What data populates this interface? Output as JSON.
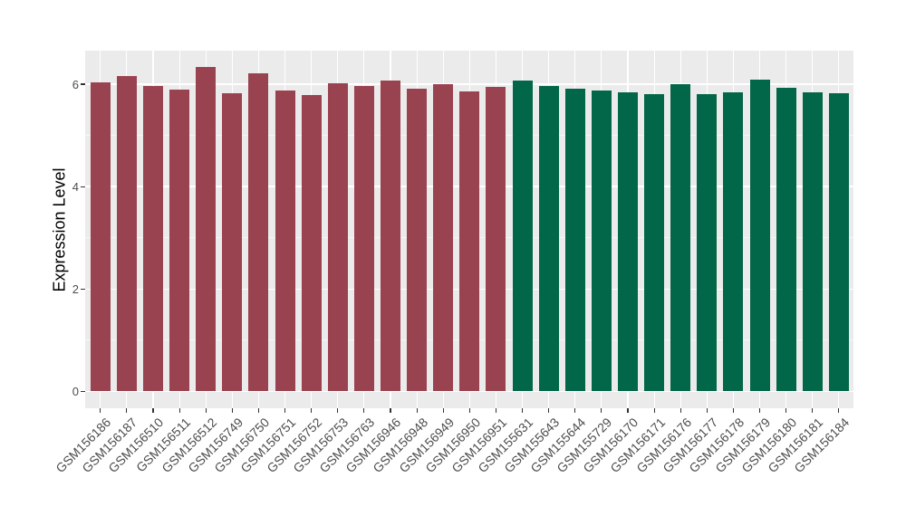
{
  "figure": {
    "background": "#FFFFFF",
    "panel_background": "#EBEBEB",
    "grid_color": "#FFFFFF",
    "tick_color": "#333333",
    "tick_label_color": "#4D4D4D"
  },
  "chart_data": {
    "type": "bar",
    "title": "",
    "xlabel": "",
    "ylabel": "Expression Level",
    "ylim": [
      0,
      6.65
    ],
    "yticks_major": [
      0,
      2,
      4,
      6
    ],
    "yticks_minor": [
      1,
      3,
      5
    ],
    "grid": true,
    "legend_position": "none",
    "x_tick_angle_deg": 45,
    "categories": [
      "GSM156186",
      "GSM156187",
      "GSM156510",
      "GSM156511",
      "GSM156512",
      "GSM156749",
      "GSM156750",
      "GSM156751",
      "GSM156752",
      "GSM156753",
      "GSM156763",
      "GSM156946",
      "GSM156948",
      "GSM156949",
      "GSM156950",
      "GSM156951",
      "GSM155631",
      "GSM155643",
      "GSM155644",
      "GSM155729",
      "GSM156170",
      "GSM156171",
      "GSM156176",
      "GSM156177",
      "GSM156178",
      "GSM156179",
      "GSM156180",
      "GSM156181",
      "GSM156184"
    ],
    "values": [
      6.04,
      6.16,
      5.97,
      5.9,
      6.33,
      5.83,
      6.21,
      5.88,
      5.79,
      6.01,
      5.97,
      6.07,
      5.91,
      6.0,
      5.86,
      5.94,
      6.07,
      5.96,
      5.92,
      5.88,
      5.84,
      5.81,
      6.0,
      5.81,
      5.85,
      6.09,
      5.93,
      5.84,
      5.82
    ],
    "groups": [
      {
        "name": "group-1-red",
        "color": "#9A4350",
        "start_index": 0,
        "end_index": 15
      },
      {
        "name": "group-2-green",
        "color": "#026649",
        "start_index": 16,
        "end_index": 28
      }
    ]
  }
}
